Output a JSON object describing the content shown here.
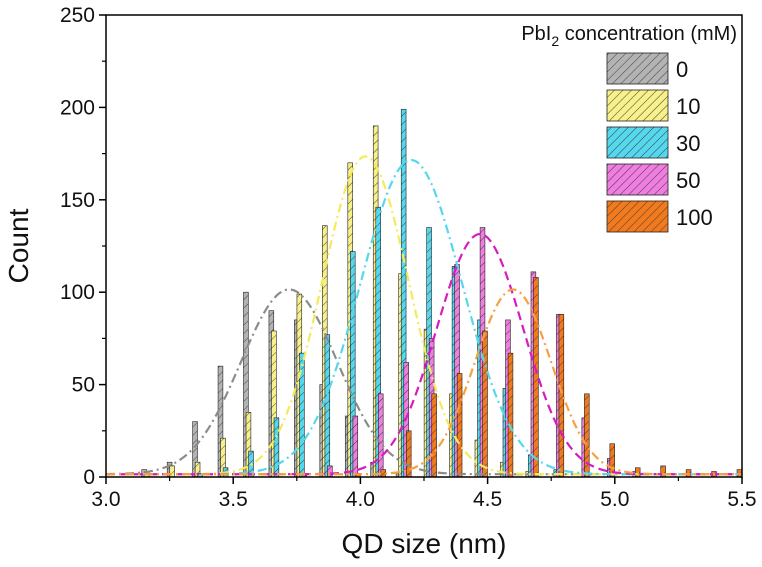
{
  "chart_data": {
    "type": "bar",
    "title": "",
    "xlabel": "QD size (nm)",
    "ylabel": "Count",
    "xlim": [
      3.0,
      5.5
    ],
    "ylim": [
      0,
      250
    ],
    "xticks": [
      3.0,
      3.5,
      4.0,
      4.5,
      5.0,
      5.5
    ],
    "xtick_labels": [
      "3.0",
      "3.5",
      "4.0",
      "4.5",
      "5.0",
      "5.5"
    ],
    "yticks": [
      0,
      50,
      100,
      150,
      200,
      250
    ],
    "ytick_labels": [
      "0",
      "50",
      "100",
      "150",
      "200",
      "250"
    ],
    "bin_width": 0.1,
    "legend": {
      "title_prefix": "PbI",
      "title_subscript": "2",
      "title_suffix": " concentration (mM)",
      "placement": "top-right"
    },
    "series": [
      {
        "name": "0",
        "color": "#b3b3b3",
        "fit_color": "#8c8c8c",
        "fit_style": "dashdot",
        "fit": {
          "amplitude": 100,
          "center": 3.72,
          "sigma": 0.19
        },
        "bars": [
          [
            3.15,
            4
          ],
          [
            3.25,
            8
          ],
          [
            3.35,
            30
          ],
          [
            3.45,
            60
          ],
          [
            3.55,
            100
          ],
          [
            3.65,
            90
          ],
          [
            3.75,
            85
          ],
          [
            3.85,
            50
          ],
          [
            3.95,
            33
          ],
          [
            4.05,
            8
          ],
          [
            4.15,
            2
          ]
        ]
      },
      {
        "name": "10",
        "color": "#f8f08a",
        "fit_color": "#f5ea5a",
        "fit_style": "dashdot",
        "fit": {
          "amplitude": 172,
          "center": 4.02,
          "sigma": 0.17
        },
        "bars": [
          [
            3.16,
            3
          ],
          [
            3.26,
            6
          ],
          [
            3.36,
            8
          ],
          [
            3.46,
            21
          ],
          [
            3.56,
            35
          ],
          [
            3.66,
            79
          ],
          [
            3.76,
            99
          ],
          [
            3.86,
            136
          ],
          [
            3.96,
            170
          ],
          [
            4.06,
            190
          ],
          [
            4.16,
            110
          ],
          [
            4.26,
            80
          ],
          [
            4.36,
            45
          ],
          [
            4.46,
            20
          ],
          [
            4.56,
            8
          ],
          [
            4.66,
            3
          ]
        ]
      },
      {
        "name": "30",
        "color": "#55d8ee",
        "fit_color": "#55d8ee",
        "fit_style": "dashdot",
        "fit": {
          "amplitude": 170,
          "center": 4.2,
          "sigma": 0.2
        },
        "bars": [
          [
            3.37,
            2
          ],
          [
            3.47,
            5
          ],
          [
            3.57,
            14
          ],
          [
            3.67,
            32
          ],
          [
            3.77,
            67
          ],
          [
            3.87,
            77
          ],
          [
            3.97,
            122
          ],
          [
            4.07,
            146
          ],
          [
            4.17,
            199
          ],
          [
            4.27,
            135
          ],
          [
            4.37,
            114
          ],
          [
            4.47,
            85
          ],
          [
            4.57,
            48
          ],
          [
            4.67,
            12
          ],
          [
            4.77,
            4
          ]
        ]
      },
      {
        "name": "50",
        "color": "#f07ee0",
        "fit_color": "#d81bc0",
        "fit_style": "dash",
        "fit": {
          "amplitude": 130,
          "center": 4.47,
          "sigma": 0.17
        },
        "bars": [
          [
            3.78,
            1
          ],
          [
            3.88,
            6
          ],
          [
            3.98,
            33
          ],
          [
            4.08,
            45
          ],
          [
            4.18,
            62
          ],
          [
            4.28,
            75
          ],
          [
            4.38,
            115
          ],
          [
            4.48,
            135
          ],
          [
            4.58,
            85
          ],
          [
            4.68,
            111
          ],
          [
            4.78,
            88
          ],
          [
            4.88,
            32
          ],
          [
            4.98,
            10
          ],
          [
            5.08,
            3
          ]
        ]
      },
      {
        "name": "100",
        "color": "#f27a1e",
        "fit_color": "#f7a040",
        "fit_style": "dashdot",
        "fit": {
          "amplitude": 100,
          "center": 4.6,
          "sigma": 0.15
        },
        "bars": [
          [
            3.99,
            2
          ],
          [
            4.09,
            4
          ],
          [
            4.19,
            25
          ],
          [
            4.29,
            45
          ],
          [
            4.39,
            56
          ],
          [
            4.49,
            79
          ],
          [
            4.59,
            67
          ],
          [
            4.69,
            108
          ],
          [
            4.79,
            88
          ],
          [
            4.89,
            45
          ],
          [
            4.99,
            18
          ],
          [
            5.09,
            5
          ],
          [
            5.19,
            6
          ],
          [
            5.29,
            4
          ],
          [
            5.39,
            3
          ],
          [
            5.49,
            4
          ]
        ]
      }
    ]
  }
}
